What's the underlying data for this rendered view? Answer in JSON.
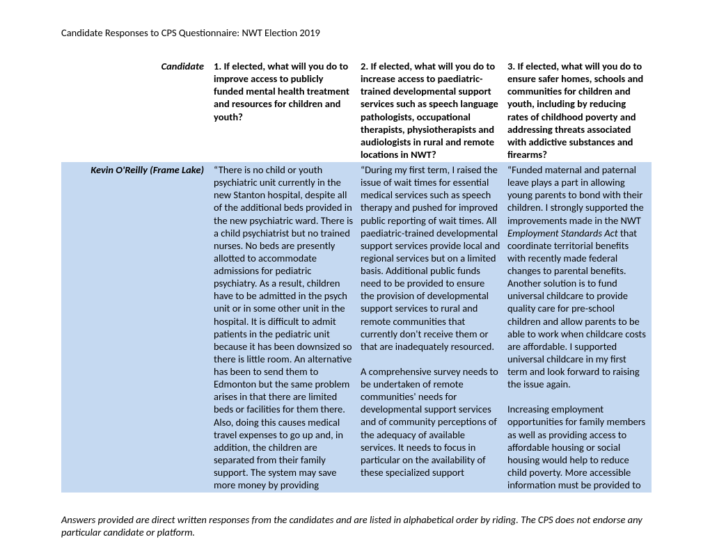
{
  "doc_title": "Candidate Responses to CPS Questionnaire: NWT Election 2019",
  "headers": {
    "candidate": "Candidate",
    "q1": "1. If elected, what will you do to improve access to publicly funded mental health treatment and resources for children and youth?",
    "q2": "2. If elected, what will you do to increase access to paediatric-trained developmental support services such as speech language pathologists, occupational therapists, physiotherapists and audiologists in rural and remote locations in NWT?",
    "q3": "3. If elected, what will you do to ensure safer homes, schools and communities for children and youth, including by reducing rates of childhood poverty and addressing threats associated with addictive substances and firearms?"
  },
  "row": {
    "name": "Kevin O'Reilly (Frame Lake)",
    "a1": "“There is no child or youth psychiatric unit currently in the new Stanton hospital, despite all of the additional beds provided in the new psychiatric ward.  There is a child psychiatrist but no trained nurses.   No beds are presently allotted to accommodate admissions for pediatric psychiatry.  As a result, children have to be admitted in the psych unit or in some other unit in the hospital.  It is difficult to admit patients in the pediatric unit because it has been downsized so there is little room.  An alternative has been to send them to Edmonton but the same problem arises in that there are limited beds or facilities for them there.  Also, doing this causes medical travel expenses to go up and, in addition, the children are separated from their family support. The system may save more money by providing",
    "a2_p1": "“During my first term, I raised the issue of wait times for essential medical services such as speech therapy and pushed for improved public reporting of wait times.  All paediatric-trained developmental support services provide local and regional services but on a limited basis.  Additional public funds need to be provided to ensure the provision of developmental support services to rural and remote communities that currently don't receive them or that are inadequately resourced.",
    "a2_p2": "A comprehensive survey needs to be undertaken of remote communities' needs for developmental support services and of community perceptions of the adequacy of available services.  It needs to focus in particular on the availability of these specialized support",
    "a3_p1_pre": "“Funded maternal and paternal leave plays a part in allowing young parents to bond with their children.  I strongly supported the improvements made in the NWT ",
    "a3_act": "Employment Standards Act",
    "a3_p1_post": " that coordinate territorial benefits with recently made federal changes to parental benefits.  Another solution is to fund universal childcare to provide quality care for pre-school children and allow parents to be able to work when childcare costs are affordable. I supported universal childcare in my first term and look forward to raising the issue again.",
    "a3_p2": "Increasing employment opportunities for family members as well as providing access to affordable housing or social housing would help to reduce child poverty.  More accessible information must be provided to"
  },
  "footnote": "Answers provided are direct written responses from the candidates and are listed in alphabetical order by riding. The CPS does not endorse any particular candidate or platform.",
  "colors": {
    "row_bg": "#c5d9f1",
    "page_bg": "#ffffff",
    "text": "#000000"
  },
  "fontsize_body_pt": 11
}
